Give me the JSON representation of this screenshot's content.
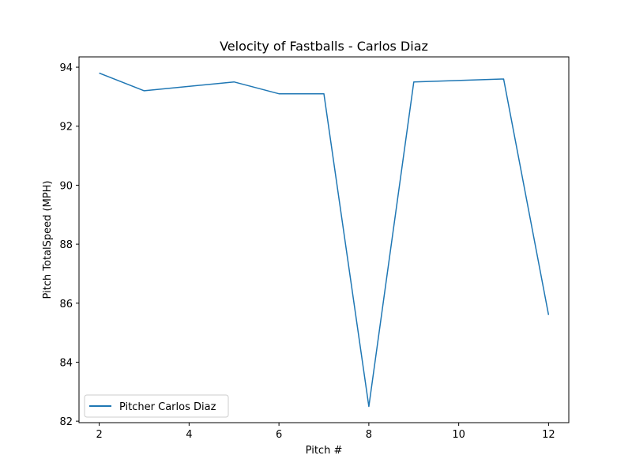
{
  "chart_data": {
    "type": "line",
    "title": "Velocity of Fastballs - Carlos Diaz",
    "xlabel": "Pitch #",
    "ylabel": "Pitch TotalSpeed (MPH)",
    "xlim": [
      1.55,
      12.45
    ],
    "ylim": [
      81.95,
      94.35
    ],
    "xticks": [
      2,
      4,
      6,
      8,
      10,
      12
    ],
    "yticks": [
      82,
      84,
      86,
      88,
      90,
      92,
      94
    ],
    "grid": false,
    "legend_position": "lower-left",
    "series": [
      {
        "name": "Pitcher Carlos Diaz",
        "color": "#1f77b4",
        "x": [
          2,
          3,
          5,
          6,
          7,
          8,
          9,
          11,
          12
        ],
        "y": [
          93.8,
          93.2,
          93.5,
          93.1,
          93.1,
          82.5,
          93.5,
          93.6,
          85.6
        ]
      }
    ]
  }
}
